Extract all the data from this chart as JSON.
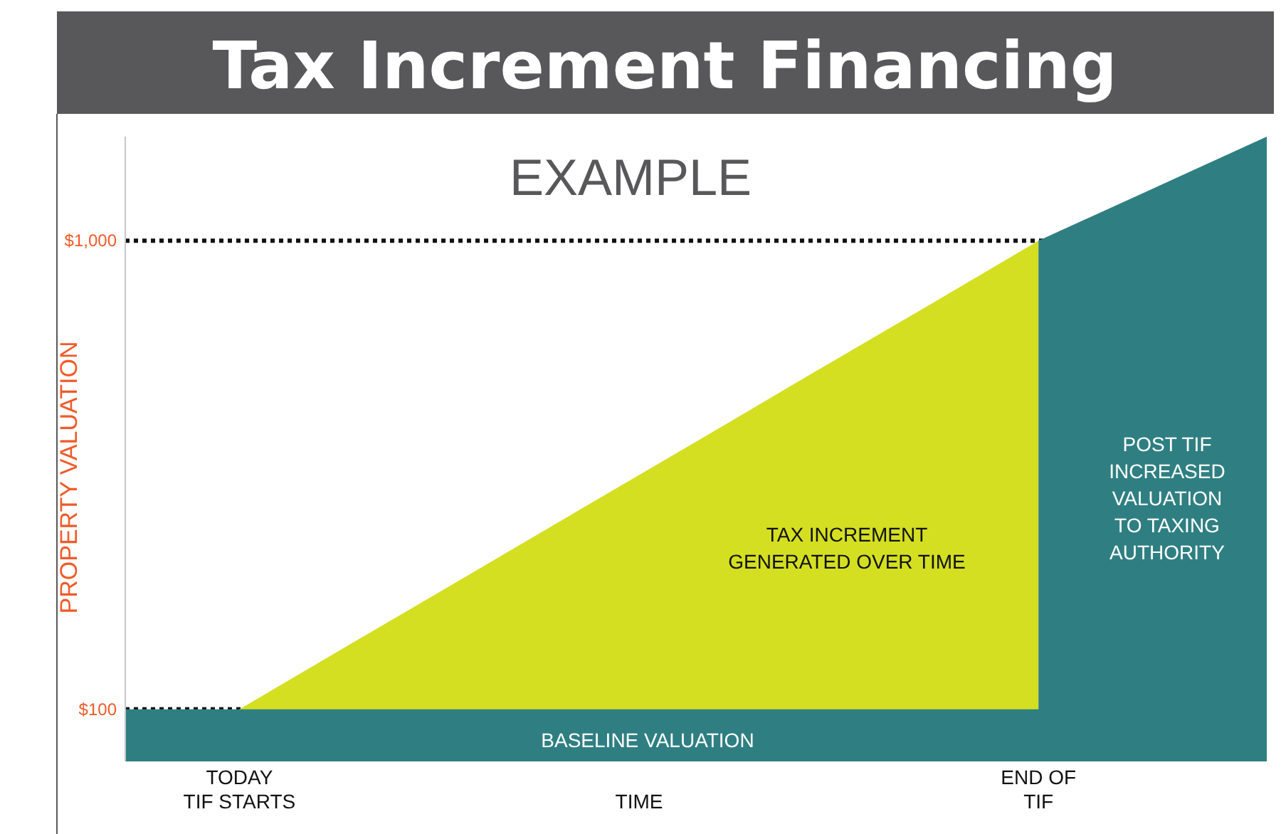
{
  "chart_data": {
    "type": "area",
    "title": "Tax Increment Financing",
    "subtitle": "EXAMPLE",
    "xlabel": "TIME",
    "ylabel": "PROPERTY VALUATION",
    "categories": [
      null,
      "TODAY\nTIF STARTS",
      null,
      null,
      null,
      null,
      null,
      null,
      "END OF\nTIF",
      null,
      null
    ],
    "series": [
      {
        "color": "#d4df22",
        "values": [
          null,
          100,
          229,
          357,
          486,
          614,
          743,
          871,
          1000,
          null,
          null
        ]
      },
      {
        "color": "#2f7f82",
        "values": [
          null,
          null,
          null,
          null,
          null,
          null,
          null,
          null,
          1000,
          1100,
          1200
        ]
      },
      {
        "color": "#2f7f82",
        "values": [
          100,
          100,
          100,
          100,
          100,
          100,
          100,
          100,
          100,
          100,
          100
        ]
      }
    ],
    "ylim": [
      0,
      1200
    ],
    "yticks": [
      {
        "value": 100,
        "label": "$100"
      },
      {
        "value": 1000,
        "label": "$1,000"
      }
    ],
    "ref_lines": [
      {
        "axis": "y",
        "value": 100,
        "line_style": "dotted",
        "color": "#111111"
      },
      {
        "axis": "y",
        "value": 1000,
        "line_style": "dotted",
        "color": "#111111"
      }
    ],
    "annotations": [
      "TAX INCREMENT\nGENERATED OVER TIME",
      "POST TIF\nINCREASED\nVALUATION\nTO TAXING\nAUTHORITY",
      "BASELINE VALUATION"
    ]
  }
}
